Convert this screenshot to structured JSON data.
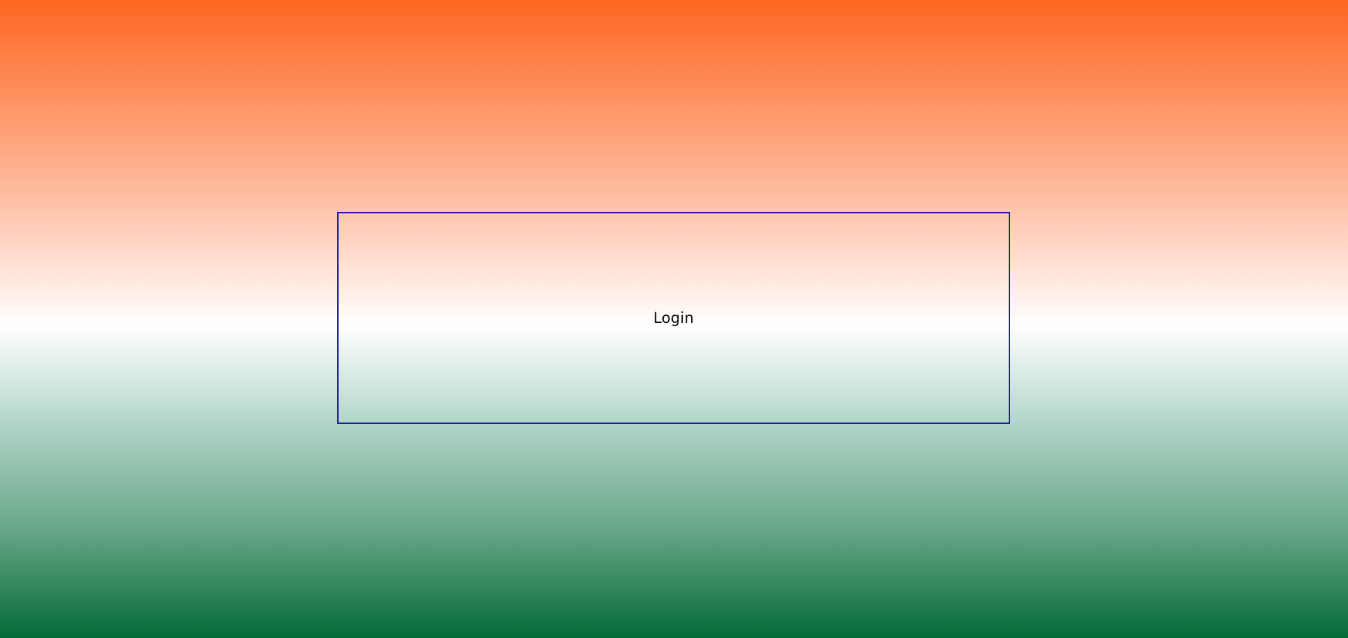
{
  "login_panel": {
    "label": "Login"
  },
  "colors": {
    "gradient_top": "#ff6620",
    "gradient_middle": "#ffffff",
    "gradient_bottom": "#046a38",
    "border": "#1c1c9c",
    "text": "#111111"
  }
}
